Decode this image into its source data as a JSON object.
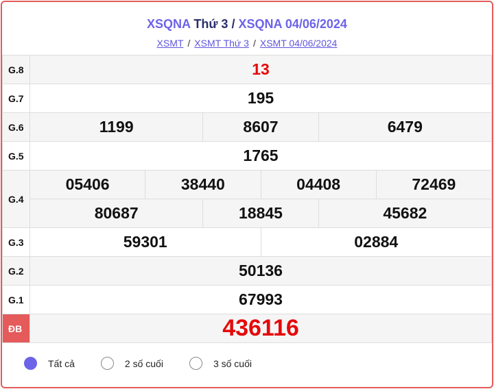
{
  "header": {
    "title_part1": "XSQNA",
    "title_part2": "Thứ 3",
    "title_sep": "/",
    "title_part3": "XSQNA 04/06/2024"
  },
  "breadcrumbs": [
    "XSMT",
    "XSMT Thứ 3",
    "XSMT 04/06/2024"
  ],
  "breadcrumb_sep": "/",
  "prizes": {
    "g8": {
      "label": "G.8",
      "values": [
        "13"
      ]
    },
    "g7": {
      "label": "G.7",
      "values": [
        "195"
      ]
    },
    "g6": {
      "label": "G.6",
      "values": [
        "1199",
        "8607",
        "6479"
      ]
    },
    "g5": {
      "label": "G.5",
      "values": [
        "1765"
      ]
    },
    "g4": {
      "label": "G.4",
      "values": [
        "05406",
        "38440",
        "04408",
        "72469",
        "80687",
        "18845",
        "45682"
      ]
    },
    "g3": {
      "label": "G.3",
      "values": [
        "59301",
        "02884"
      ]
    },
    "g2": {
      "label": "G.2",
      "values": [
        "50136"
      ]
    },
    "g1": {
      "label": "G.1",
      "values": [
        "67993"
      ]
    },
    "db": {
      "label": "ĐB",
      "values": [
        "436116"
      ]
    }
  },
  "filters": {
    "selected": "Tất cả",
    "options": [
      "Tất cả",
      "2 số cuối",
      "3 số cuối"
    ]
  },
  "colors": {
    "accent": "#6c63e8",
    "special": "#e40a0a",
    "border": "#e45b5b"
  }
}
